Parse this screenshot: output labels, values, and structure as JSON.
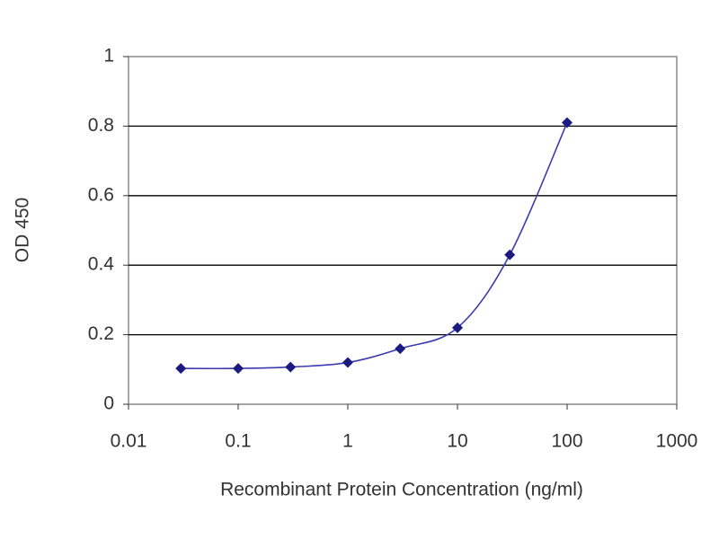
{
  "chart_data": {
    "type": "scatter",
    "x_label": "Recombinant Protein Concentration (ng/ml)",
    "y_label": "OD 450",
    "x": [
      0.03,
      0.1,
      0.3,
      1,
      3,
      10,
      30,
      100
    ],
    "series": [
      {
        "color": "#1a1a80",
        "values": [
          0.103,
          0.103,
          0.107,
          0.12,
          0.16,
          0.22,
          0.43,
          0.81
        ]
      }
    ],
    "xlim": [
      0.01,
      1000
    ],
    "xticks": [
      0.01,
      0.1,
      1,
      10,
      100,
      1000
    ],
    "x_log": true,
    "ylim": [
      0,
      1
    ],
    "yticks": [
      0,
      0.2,
      0.4,
      0.6,
      0.8,
      1
    ],
    "grid": true,
    "smooth": true
  }
}
